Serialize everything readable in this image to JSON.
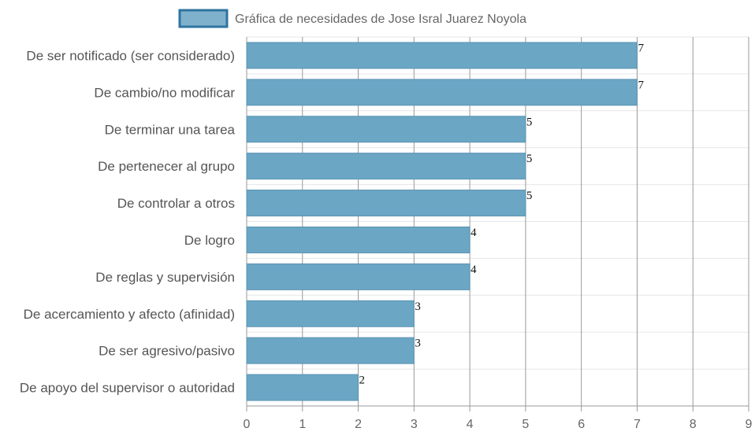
{
  "chart_data": {
    "type": "bar",
    "orientation": "horizontal",
    "title": "",
    "categories": [
      "De ser notificado (ser considerado)",
      "De cambio/no modificar",
      "De terminar una tarea",
      "De pertenecer al grupo",
      "De controlar a otros",
      "De logro",
      "De reglas y supervisión",
      "De acercamiento y afecto (afinidad)",
      "De ser agresivo/pasivo",
      "De apoyo del supervisor o autoridad"
    ],
    "series": [
      {
        "name": "Gráfica de necesidades de Jose Isral Juarez Noyola",
        "values": [
          7,
          7,
          5,
          5,
          5,
          4,
          4,
          3,
          3,
          2
        ]
      }
    ],
    "data_labels": [
      "7",
      "7",
      "5",
      "5",
      "5",
      "4",
      "4",
      "3",
      "3",
      "2"
    ],
    "xlim": [
      0,
      9
    ],
    "x_ticks": [
      "0",
      "1",
      "2",
      "3",
      "4",
      "5",
      "6",
      "7",
      "8",
      "9"
    ],
    "grid": true,
    "legend_position": "top",
    "colors": {
      "bar_fill": "#6ba6c4",
      "bar_stroke": "#5a93b2",
      "legend_fill": "#7fb1cd",
      "legend_stroke": "#2f74a0",
      "grid": "#e6e6e6",
      "vgrid": "#999999",
      "axis": "#999999"
    }
  }
}
